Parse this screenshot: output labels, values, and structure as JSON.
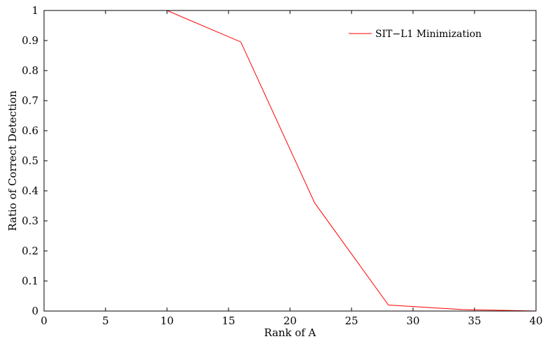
{
  "chart_data": {
    "type": "line",
    "title": "",
    "xlabel": "Rank of A",
    "ylabel": "Ratio of Correct Detection",
    "xlim": [
      0,
      40
    ],
    "ylim": [
      0,
      1
    ],
    "xticks": [
      0,
      5,
      10,
      15,
      20,
      25,
      30,
      35,
      40
    ],
    "yticks": [
      0,
      0.1,
      0.2,
      0.3,
      0.4,
      0.5,
      0.6,
      0.7,
      0.8,
      0.9,
      1
    ],
    "xtick_labels": [
      "0",
      "5",
      "10",
      "15",
      "20",
      "25",
      "30",
      "35",
      "40"
    ],
    "ytick_labels": [
      "0",
      "0.1",
      "0.2",
      "0.3",
      "0.4",
      "0.5",
      "0.6",
      "0.7",
      "0.8",
      "0.9",
      "1"
    ],
    "grid": false,
    "legend_position": "top-right",
    "series": [
      {
        "name": "SIT−L1 Minimization",
        "color": "#ff0000",
        "x": [
          4,
          10,
          16,
          22,
          28,
          34,
          40
        ],
        "y": [
          1.0,
          1.0,
          0.895,
          0.36,
          0.02,
          0.005,
          0.0
        ]
      }
    ]
  }
}
